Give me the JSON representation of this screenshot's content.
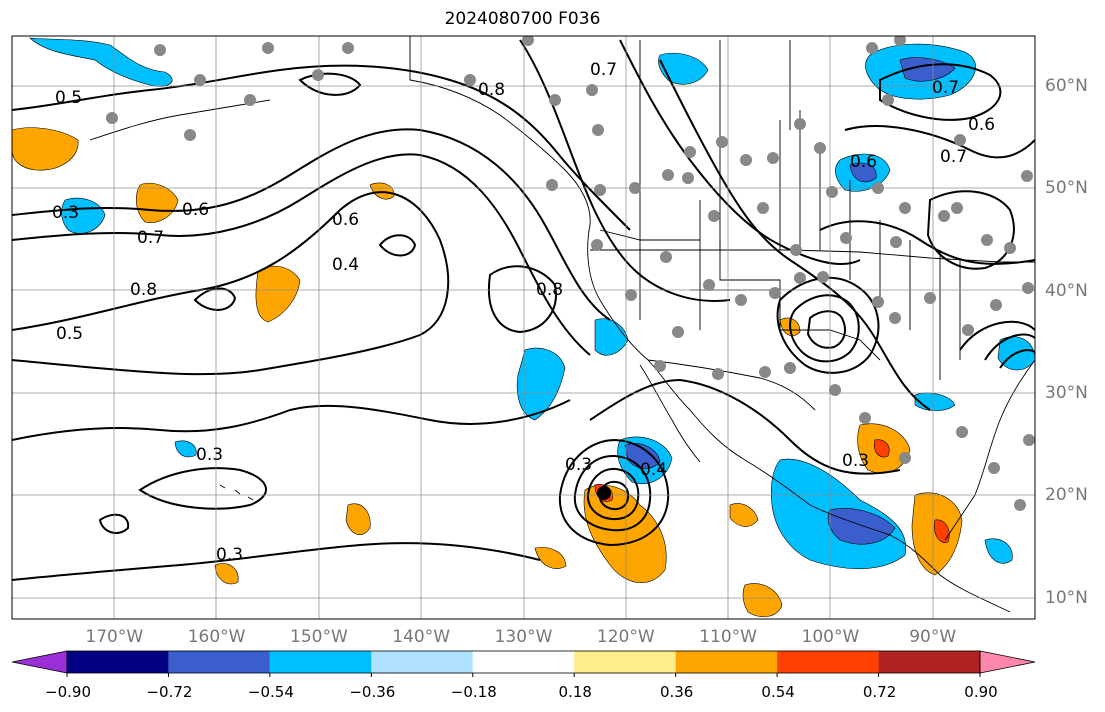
{
  "title": "2024080700 F036",
  "map": {
    "lat_labels": [
      {
        "lat": 60,
        "label": "60°N"
      },
      {
        "lat": 50,
        "label": "50°N"
      },
      {
        "lat": 40,
        "label": "40°N"
      },
      {
        "lat": 30,
        "label": "30°N"
      },
      {
        "lat": 20,
        "label": "20°N"
      },
      {
        "lat": 10,
        "label": "10°N"
      }
    ],
    "lon_labels": [
      {
        "lon": -170,
        "label": "170°W"
      },
      {
        "lon": -160,
        "label": "160°W"
      },
      {
        "lon": -150,
        "label": "150°W"
      },
      {
        "lon": -140,
        "label": "140°W"
      },
      {
        "lon": -130,
        "label": "130°W"
      },
      {
        "lon": -120,
        "label": "120°W"
      },
      {
        "lon": -110,
        "label": "110°W"
      },
      {
        "lon": -100,
        "label": "100°W"
      },
      {
        "lon": -90,
        "label": "90°W"
      }
    ],
    "extent": {
      "lon_min": -180,
      "lon_max": -80,
      "lat_min": 8,
      "lat_max": 65
    },
    "contour_labels": [
      "0.5",
      "0.3",
      "0.7",
      "0.8",
      "0.5",
      "0.6",
      "0.4",
      "0.6",
      "0.8",
      "0.7",
      "0.8",
      "0.3",
      "0.3",
      "0.3",
      "0.4",
      "0.6",
      "0.7",
      "0.6",
      "0.7",
      "0.3"
    ],
    "dot_color": "#888888"
  },
  "colorbar": {
    "colors": [
      "#9b30d9",
      "#000080",
      "#3a5fcd",
      "#00bfff",
      "#b0e2ff",
      "#ffffff",
      "#ffec8b",
      "#ffa500",
      "#ff4000",
      "#b22222",
      "#ff88aa"
    ],
    "ticks": [
      "−0.90",
      "−0.72",
      "−0.54",
      "−0.36",
      "−0.18",
      "0.18",
      "0.36",
      "0.54",
      "0.72",
      "0.90"
    ]
  }
}
